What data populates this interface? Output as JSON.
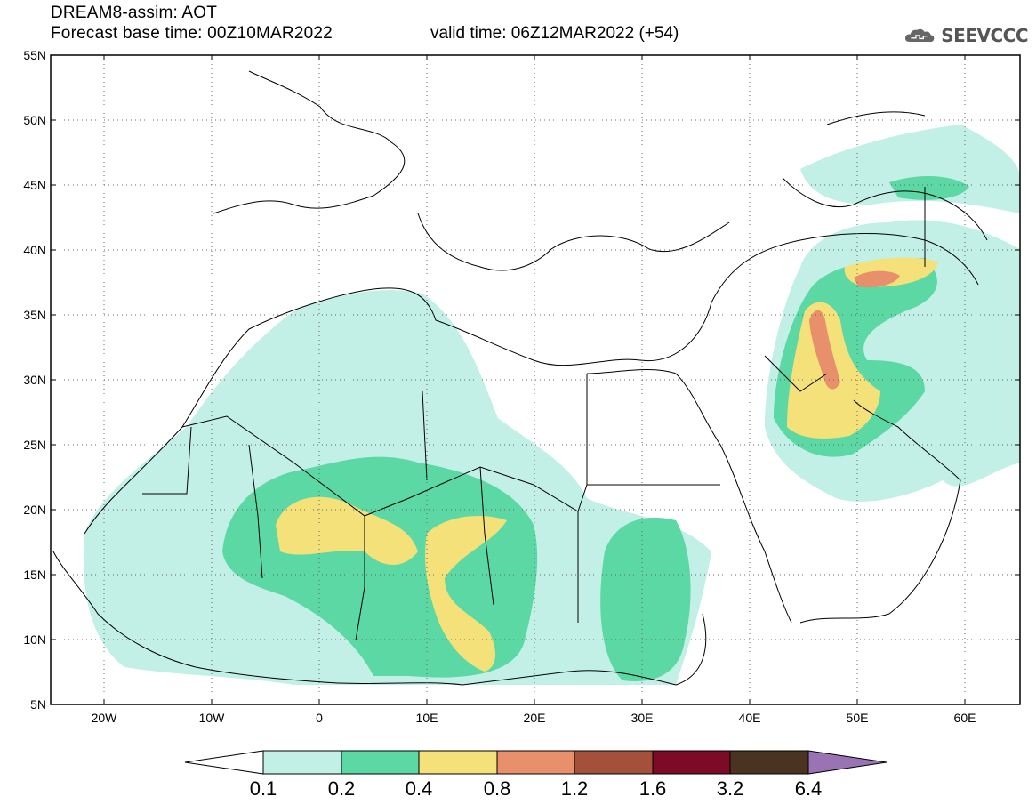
{
  "header": {
    "model_line": "DREAM8-assim: AOT",
    "base_time": "Forecast base time: 00Z10MAR2022",
    "valid_time": "valid time: 06Z12MAR2022 (+54)",
    "logo_text": "SEEVCCC",
    "logo_icon": "cloud-icon"
  },
  "map": {
    "lon_range": [
      -25,
      65
    ],
    "lat_range": [
      5,
      55
    ],
    "lat_labels": [
      "55N",
      "50N",
      "45N",
      "40N",
      "35N",
      "30N",
      "25N",
      "20N",
      "15N",
      "10N",
      "5N"
    ],
    "lon_labels": [
      "20W",
      "10W",
      "0",
      "10E",
      "20E",
      "30E",
      "40E",
      "50E",
      "60E"
    ],
    "grid": "dotted"
  },
  "legend": {
    "levels": [
      "0.1",
      "0.2",
      "0.4",
      "0.8",
      "1.2",
      "1.6",
      "3.2",
      "6.4"
    ],
    "colors": {
      "lt_0_1": "#ffffff",
      "b_0_1_0_2": "#c2efe6",
      "b_0_2_0_4": "#5cd8a4",
      "b_0_4_0_8": "#f4e17a",
      "b_0_8_1_2": "#e88f6b",
      "b_1_2_1_6": "#a4503a",
      "b_1_6_3_2": "#7d0a26",
      "b_3_2_6_4": "#4a3320",
      "gt_6_4": "#9a73b4"
    }
  }
}
